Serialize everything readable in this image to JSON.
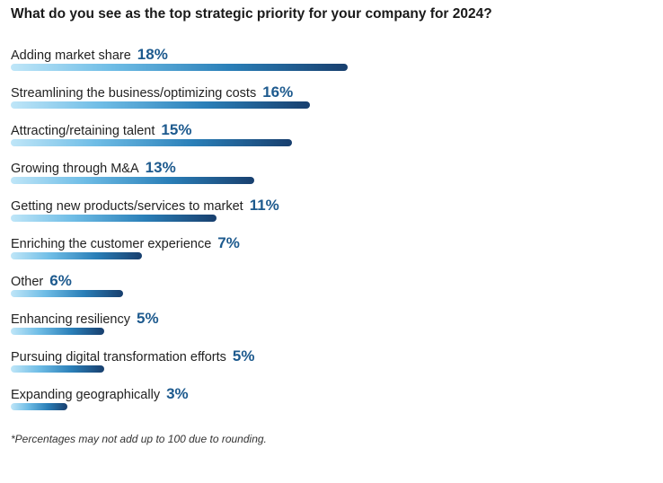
{
  "chart_data": {
    "type": "bar",
    "orientation": "horizontal",
    "title": "What do you see as the top strategic priority for your company for 2024?",
    "categories": [
      "Adding market share",
      "Streamlining the business/optimizing costs",
      "Attracting/retaining talent",
      "Growing through M&A",
      "Getting new products/services to market",
      "Enriching the customer experience",
      "Other",
      "Enhancing resiliency",
      "Pursuing digital transformation efforts",
      "Expanding geographically"
    ],
    "values": [
      18,
      16,
      15,
      13,
      11,
      7,
      6,
      5,
      5,
      3
    ],
    "value_labels": [
      "18%",
      "16%",
      "15%",
      "13%",
      "11%",
      "7%",
      "6%",
      "5%",
      "5%",
      "3%"
    ],
    "unit": "%",
    "xlabel": "",
    "ylabel": "",
    "xlim": [
      0,
      18
    ],
    "footnote": "*Percentages may not add up to 100 due to rounding.",
    "colors": {
      "gradient_start": "#bfe6f8",
      "gradient_mid": "#2a7fb8",
      "gradient_end": "#183f6e",
      "value_label": "#1d5a8e"
    }
  }
}
